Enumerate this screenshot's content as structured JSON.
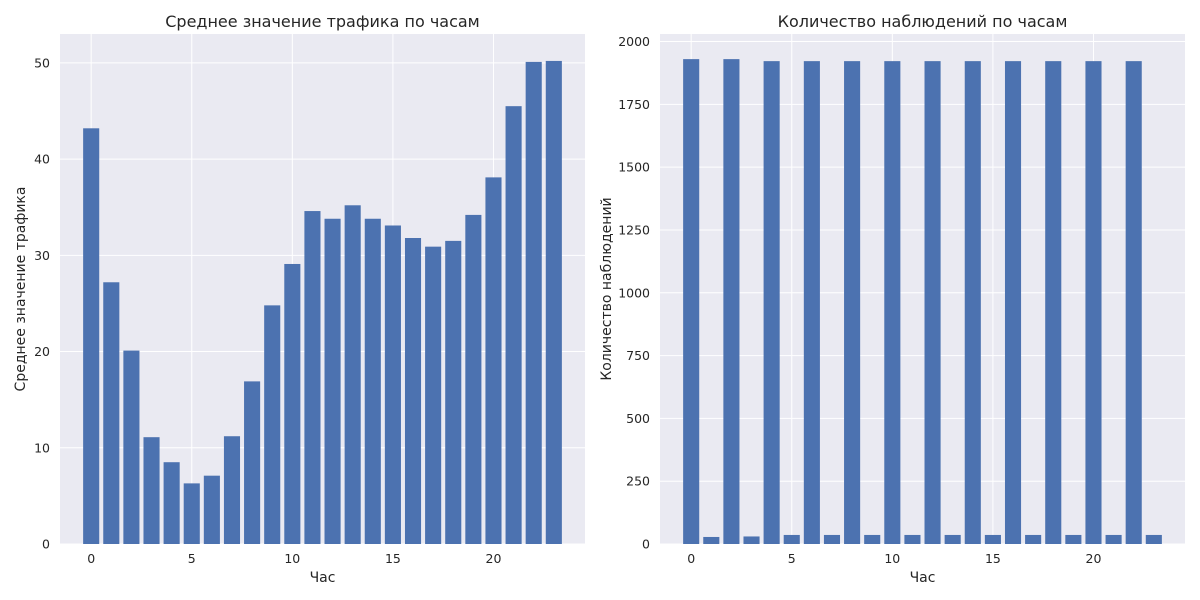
{
  "colors": {
    "bar": "#4c72b0",
    "axes_background": "#eaeaf2",
    "grid": "#ffffff",
    "text": "#262626"
  },
  "chart_data": [
    {
      "type": "bar",
      "title": "Среднее значение трафика по часам",
      "xlabel": "Час",
      "ylabel": "Среднее значение трафика",
      "x": [
        0,
        1,
        2,
        3,
        4,
        5,
        6,
        7,
        8,
        9,
        10,
        11,
        12,
        13,
        14,
        15,
        16,
        17,
        18,
        19,
        20,
        21,
        22,
        23
      ],
      "values": [
        43.2,
        27.2,
        20.1,
        11.1,
        8.5,
        6.3,
        7.1,
        11.2,
        16.9,
        24.8,
        29.1,
        34.6,
        33.8,
        35.2,
        33.8,
        33.1,
        31.8,
        30.9,
        31.5,
        34.2,
        38.1,
        45.5,
        50.1,
        50.2
      ],
      "xlim": [
        -1.55,
        24.55
      ],
      "ylim": [
        0,
        53
      ],
      "xticks": [
        0,
        5,
        10,
        15,
        20
      ],
      "xtick_labels": [
        "0",
        "5",
        "10",
        "15",
        "20"
      ],
      "yticks": [
        0,
        10,
        20,
        30,
        40,
        50
      ],
      "ytick_labels": [
        "0",
        "10",
        "20",
        "30",
        "40",
        "50"
      ],
      "grid": true
    },
    {
      "type": "bar",
      "title": "Количество наблюдений по часам",
      "xlabel": "Час",
      "ylabel": "Количество наблюдений",
      "x": [
        0,
        1,
        2,
        3,
        4,
        5,
        6,
        7,
        8,
        9,
        10,
        11,
        12,
        13,
        14,
        15,
        16,
        17,
        18,
        19,
        20,
        21,
        22,
        23
      ],
      "values": [
        1930,
        28,
        1930,
        30,
        1922,
        36,
        1922,
        36,
        1922,
        36,
        1922,
        36,
        1922,
        36,
        1922,
        36,
        1922,
        36,
        1922,
        36,
        1922,
        36,
        1922,
        36
      ],
      "xlim": [
        -1.55,
        24.55
      ],
      "ylim": [
        0,
        2030
      ],
      "xticks": [
        0,
        5,
        10,
        15,
        20
      ],
      "xtick_labels": [
        "0",
        "5",
        "10",
        "15",
        "20"
      ],
      "yticks": [
        0,
        250,
        500,
        750,
        1000,
        1250,
        1500,
        1750,
        2000
      ],
      "ytick_labels": [
        "0",
        "250",
        "500",
        "750",
        "1000",
        "1250",
        "1500",
        "1750",
        "2000"
      ],
      "grid": true
    }
  ]
}
